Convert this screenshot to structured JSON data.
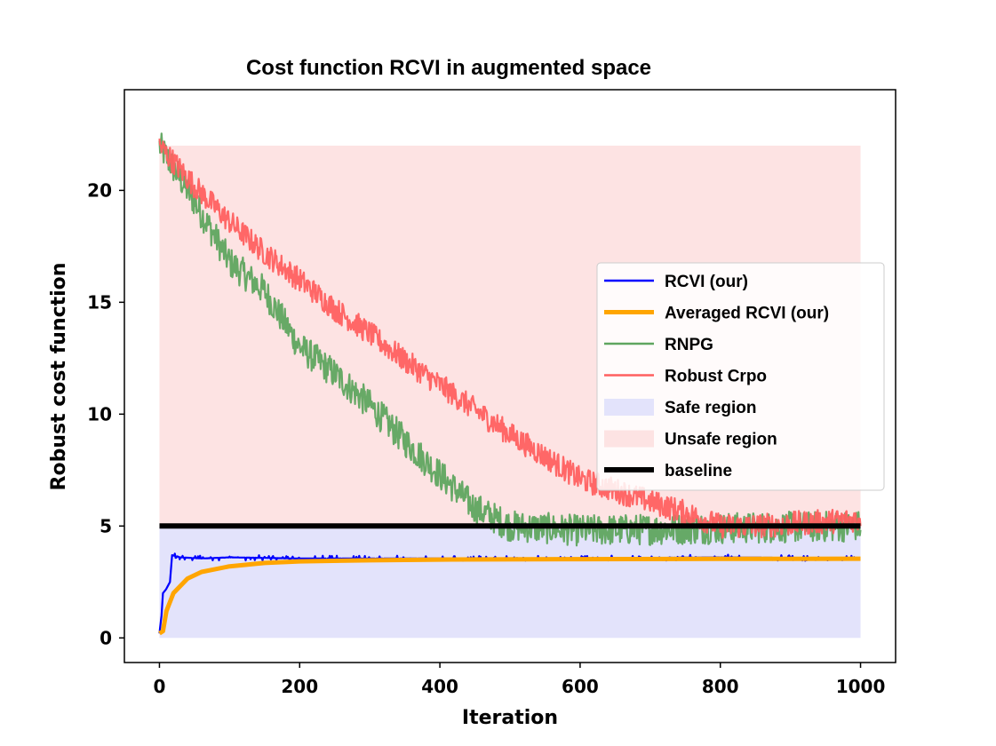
{
  "chart_data": {
    "type": "line",
    "title": "Cost function RCVI in augmented space",
    "xlabel": "Iteration",
    "ylabel": "Robust cost function",
    "xlim": [
      -50,
      1050
    ],
    "ylim": [
      -1.1,
      24.5
    ],
    "xticks": [
      0,
      200,
      400,
      600,
      800,
      1000
    ],
    "yticks": [
      0,
      5,
      10,
      15,
      20
    ],
    "legend_position": "right",
    "regions": [
      {
        "name": "Safe region",
        "x": [
          0,
          1000
        ],
        "y": [
          0,
          5
        ],
        "color": "#e3e3fb"
      },
      {
        "name": "Unsafe region",
        "x": [
          0,
          1000
        ],
        "y": [
          5,
          22
        ],
        "color": "#fde3e3"
      }
    ],
    "series": [
      {
        "name": "RCVI (our)",
        "color": "#0000ff",
        "x": [
          0,
          3,
          5,
          10,
          15,
          18,
          30,
          60,
          100,
          200,
          400,
          600,
          800,
          1000
        ],
        "y": [
          0.2,
          1.0,
          2.0,
          2.2,
          2.5,
          3.7,
          3.6,
          3.55,
          3.6,
          3.55,
          3.55,
          3.55,
          3.6,
          3.55
        ]
      },
      {
        "name": "Averaged RCVI (our)",
        "color": "#ffa500",
        "x": [
          0,
          5,
          10,
          20,
          40,
          60,
          100,
          150,
          200,
          300,
          400,
          600,
          800,
          1000
        ],
        "y": [
          0.2,
          0.3,
          1.2,
          2.0,
          2.65,
          2.95,
          3.2,
          3.35,
          3.42,
          3.47,
          3.5,
          3.52,
          3.53,
          3.54
        ]
      },
      {
        "name": "RNPG",
        "color": "#5fa55f",
        "x": [
          0,
          20,
          50,
          100,
          150,
          200,
          250,
          300,
          350,
          400,
          450,
          500,
          600,
          700,
          800,
          900,
          1000
        ],
        "y": [
          22.0,
          21.0,
          19.5,
          16.8,
          15.5,
          13.0,
          11.8,
          10.4,
          8.8,
          7.3,
          5.8,
          5.0,
          4.8,
          4.85,
          4.9,
          4.95,
          5.0
        ]
      },
      {
        "name": "Robust Crpo",
        "color": "#ff6060",
        "x": [
          0,
          50,
          100,
          150,
          200,
          250,
          300,
          350,
          400,
          450,
          500,
          550,
          600,
          650,
          700,
          750,
          800,
          850,
          900,
          950,
          1000
        ],
        "y": [
          22.0,
          20.2,
          18.6,
          17.2,
          16.0,
          14.7,
          13.6,
          12.4,
          11.3,
          10.2,
          9.1,
          8.1,
          7.1,
          6.6,
          6.1,
          5.6,
          5.0,
          5.0,
          5.1,
          5.2,
          5.3
        ]
      },
      {
        "name": "baseline",
        "color": "#000000",
        "x": [
          0,
          1000
        ],
        "y": [
          5,
          5
        ]
      }
    ],
    "noise": {
      "RNPG": 0.7,
      "Robust Crpo": 0.55,
      "RCVI (our)": 0.07
    },
    "legend": [
      "RCVI (our)",
      "Averaged RCVI (our)",
      "RNPG",
      "Robust Crpo",
      "Safe region",
      "Unsafe region",
      "baseline"
    ]
  }
}
